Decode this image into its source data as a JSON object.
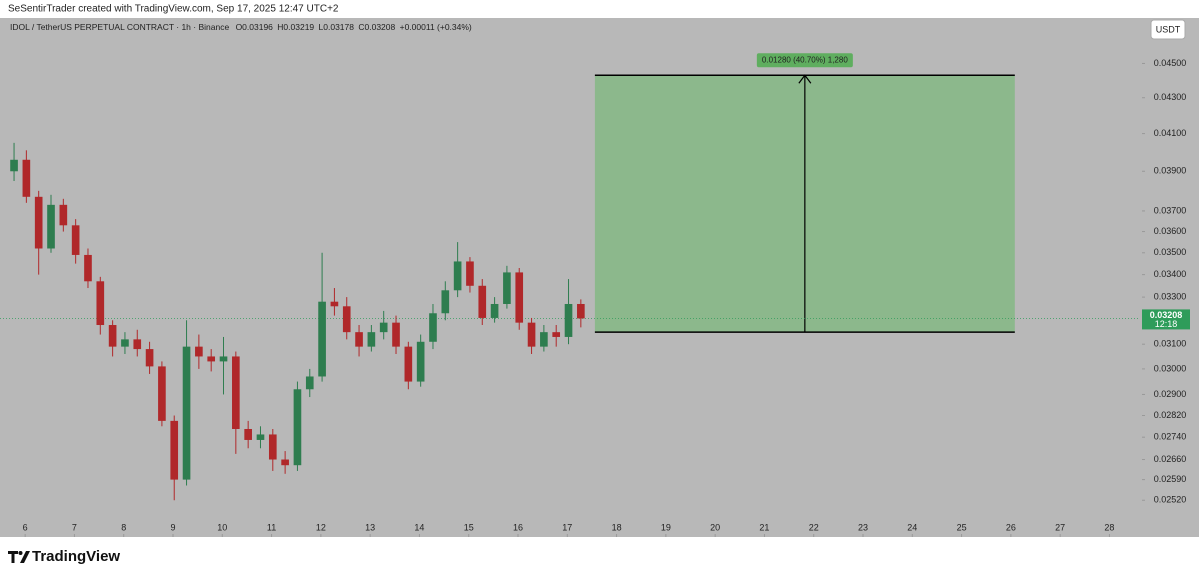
{
  "credit": "SeSentirTrader created with TradingView.com, Sep 17, 2025 12:47 UTC+2",
  "brand": "TradingView",
  "currency_button": "USDT",
  "legend": {
    "symbol": "IDOL / TetherUS PERPETUAL CONTRACT · 1h · Binance",
    "open": "O0.03196",
    "high": "H0.03219",
    "low": "L0.03178",
    "close": "C0.03208",
    "change": "+0.00011 (+0.34%)"
  },
  "chart_data": {
    "type": "candlestick",
    "log_scale": true,
    "up_color": "#2e7d4f",
    "down_color": "#b0282a",
    "xlim": [
      5.49,
      28.62
    ],
    "xticks": [
      6,
      7,
      8,
      9,
      10,
      11,
      12,
      13,
      14,
      15,
      16,
      17,
      18,
      19,
      20,
      21,
      22,
      23,
      24,
      25,
      26,
      27,
      28
    ],
    "ylim": [
      0.024,
      0.0478
    ],
    "yticks": [
      {
        "value": 0.045,
        "label": "0.04500"
      },
      {
        "value": 0.043,
        "label": "0.04300"
      },
      {
        "value": 0.041,
        "label": "0.04100"
      },
      {
        "value": 0.039,
        "label": "0.03900"
      },
      {
        "value": 0.037,
        "label": "0.03700"
      },
      {
        "value": 0.036,
        "label": "0.03600"
      },
      {
        "value": 0.035,
        "label": "0.03500"
      },
      {
        "value": 0.034,
        "label": "0.03400"
      },
      {
        "value": 0.033,
        "label": "0.03300"
      },
      {
        "value": 0.031,
        "label": "0.03100"
      },
      {
        "value": 0.03,
        "label": "0.03000"
      },
      {
        "value": 0.029,
        "label": "0.02900"
      },
      {
        "value": 0.0282,
        "label": "0.02820"
      },
      {
        "value": 0.0274,
        "label": "0.02740"
      },
      {
        "value": 0.0266,
        "label": "0.02660"
      },
      {
        "value": 0.0259,
        "label": "0.02590"
      },
      {
        "value": 0.0252,
        "label": "0.02520"
      }
    ],
    "x": [
      5.775,
      6.025,
      6.275,
      6.525,
      6.775,
      7.025,
      7.275,
      7.525,
      7.775,
      8.025,
      8.275,
      8.525,
      8.775,
      9.025,
      9.275,
      9.525,
      9.775,
      10.025,
      10.275,
      10.525,
      10.775,
      11.025,
      11.275,
      11.525,
      11.775,
      12.025,
      12.275,
      12.525,
      12.775,
      13.025,
      13.275,
      13.525,
      13.775,
      14.025,
      14.275,
      14.525,
      14.775,
      15.025,
      15.275,
      15.525,
      15.775,
      16.025,
      16.275,
      16.525,
      16.775,
      17.025,
      17.275
    ],
    "open": [
      0.039,
      0.0396,
      0.0377,
      0.0352,
      0.0373,
      0.0363,
      0.0349,
      0.0337,
      0.0318,
      0.0309,
      0.0312,
      0.0308,
      0.0301,
      0.028,
      0.0259,
      0.0309,
      0.0305,
      0.0303,
      0.0305,
      0.0277,
      0.0273,
      0.0275,
      0.0266,
      0.0264,
      0.0292,
      0.0297,
      0.0328,
      0.0326,
      0.0315,
      0.0309,
      0.0315,
      0.0319,
      0.0309,
      0.0295,
      0.0311,
      0.0323,
      0.0333,
      0.0346,
      0.0335,
      0.0321,
      0.0327,
      0.0341,
      0.0319,
      0.0309,
      0.0315,
      0.0313,
      0.0327
    ],
    "high": [
      0.0405,
      0.0401,
      0.038,
      0.0378,
      0.0376,
      0.0366,
      0.0352,
      0.0339,
      0.032,
      0.0315,
      0.0316,
      0.0311,
      0.0303,
      0.0282,
      0.032,
      0.0314,
      0.0308,
      0.0313,
      0.0307,
      0.028,
      0.0278,
      0.0277,
      0.0269,
      0.0295,
      0.03,
      0.035,
      0.0334,
      0.033,
      0.0318,
      0.0318,
      0.0324,
      0.0322,
      0.0311,
      0.0314,
      0.0327,
      0.0337,
      0.0355,
      0.0348,
      0.0338,
      0.033,
      0.0344,
      0.0343,
      0.0321,
      0.0318,
      0.0318,
      0.0338,
      0.0329
    ],
    "low": [
      0.0385,
      0.0374,
      0.034,
      0.035,
      0.036,
      0.0345,
      0.0334,
      0.0314,
      0.0305,
      0.0306,
      0.0305,
      0.0298,
      0.0278,
      0.0252,
      0.0257,
      0.03,
      0.0299,
      0.029,
      0.0268,
      0.027,
      0.027,
      0.0262,
      0.0261,
      0.0262,
      0.0289,
      0.0295,
      0.0322,
      0.0312,
      0.0305,
      0.0307,
      0.0312,
      0.0306,
      0.0292,
      0.0293,
      0.0308,
      0.032,
      0.033,
      0.0332,
      0.0318,
      0.0319,
      0.0325,
      0.0316,
      0.0306,
      0.0307,
      0.0309,
      0.031,
      0.0317
    ],
    "close": [
      0.0396,
      0.0377,
      0.0352,
      0.0373,
      0.0363,
      0.0349,
      0.0337,
      0.0318,
      0.0309,
      0.0312,
      0.0308,
      0.0301,
      0.028,
      0.0259,
      0.0309,
      0.0305,
      0.0303,
      0.0305,
      0.0277,
      0.0273,
      0.0275,
      0.0266,
      0.0264,
      0.0292,
      0.0297,
      0.0328,
      0.0326,
      0.0315,
      0.0309,
      0.0315,
      0.0319,
      0.0309,
      0.0295,
      0.0311,
      0.0323,
      0.0333,
      0.0346,
      0.0335,
      0.0321,
      0.0327,
      0.0341,
      0.0319,
      0.0309,
      0.0315,
      0.0313,
      0.0327,
      0.03208
    ],
    "last_price": {
      "value": 0.03208,
      "label": "0.03208",
      "countdown": "12:18",
      "color": "#2e9c5a"
    },
    "position": {
      "entry": 0.0315,
      "target": 0.0443,
      "x_start": 17.56,
      "x_end": 26.08,
      "label": "0.01280 (40.70%) 1,280",
      "color": "#8cb88c",
      "label_color": "#5fae5f"
    }
  }
}
